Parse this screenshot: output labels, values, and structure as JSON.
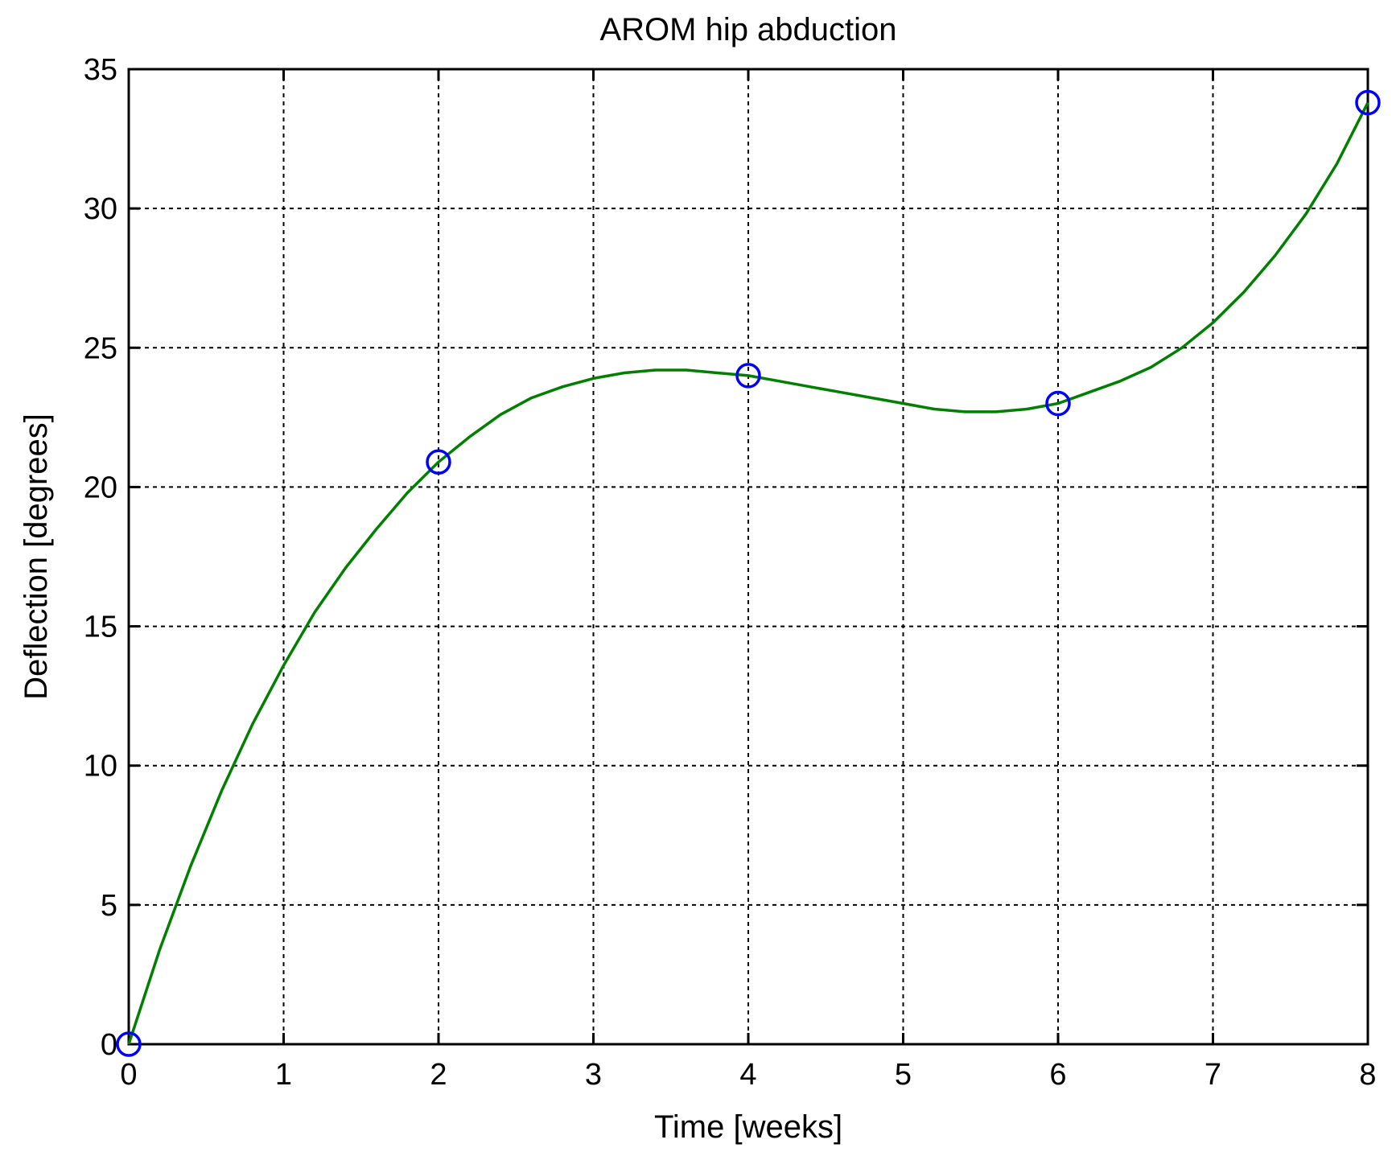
{
  "chart_data": {
    "type": "line",
    "title": "AROM hip abduction",
    "xlabel": "Time [weeks]",
    "ylabel": "Deflection [degrees]",
    "xlim": [
      0,
      8
    ],
    "ylim": [
      0,
      35
    ],
    "xticks": [
      0,
      1,
      2,
      3,
      4,
      5,
      6,
      7,
      8
    ],
    "yticks": [
      0,
      5,
      10,
      15,
      20,
      25,
      30,
      35
    ],
    "grid": true,
    "series": [
      {
        "kind": "markers",
        "marker": "circle",
        "color": "#0000ff",
        "x": [
          0,
          2,
          4,
          6,
          8
        ],
        "y": [
          0,
          20.9,
          24.0,
          23.0,
          33.8
        ]
      },
      {
        "kind": "line",
        "color": "#007f00",
        "x": [
          0,
          0.2,
          0.4,
          0.6,
          0.8,
          1.0,
          1.2,
          1.4,
          1.6,
          1.8,
          2.0,
          2.2,
          2.4,
          2.6,
          2.8,
          3.0,
          3.2,
          3.4,
          3.6,
          3.8,
          4.0,
          4.2,
          4.4,
          4.6,
          4.8,
          5.0,
          5.2,
          5.4,
          5.6,
          5.8,
          6.0,
          6.2,
          6.4,
          6.6,
          6.8,
          7.0,
          7.2,
          7.4,
          7.6,
          7.8,
          8.0
        ],
        "y": [
          0,
          3.4,
          6.4,
          9.1,
          11.5,
          13.6,
          15.5,
          17.1,
          18.5,
          19.8,
          20.9,
          21.8,
          22.6,
          23.2,
          23.6,
          23.9,
          24.1,
          24.2,
          24.2,
          24.1,
          24.0,
          23.8,
          23.6,
          23.4,
          23.2,
          23.0,
          22.8,
          22.7,
          22.7,
          22.8,
          23.0,
          23.4,
          23.8,
          24.3,
          25.0,
          25.9,
          27.0,
          28.3,
          29.8,
          31.6,
          33.8
        ]
      }
    ]
  }
}
